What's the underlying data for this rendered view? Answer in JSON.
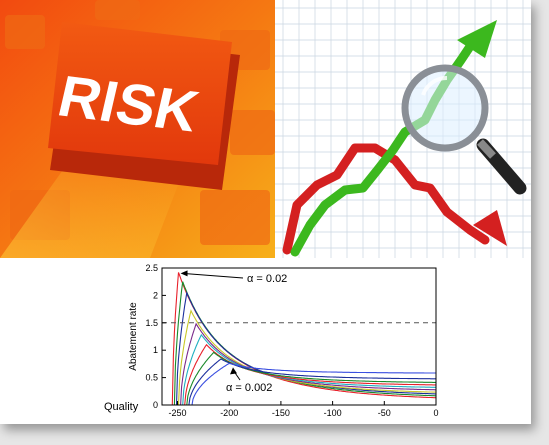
{
  "risk_panel": {
    "key_label": "RISK"
  },
  "chart_data": {
    "type": "line",
    "ylabel": "Abatement rate",
    "xlabel": "Quality",
    "xlim": [
      -265,
      0
    ],
    "ylim": [
      0,
      2.5
    ],
    "xticks": [
      -250,
      -200,
      -150,
      -100,
      -50,
      0
    ],
    "yticks": [
      0,
      0.5,
      1,
      1.5,
      2,
      2.5
    ],
    "reference_line": {
      "y": 1.5,
      "style": "dashed"
    },
    "annotations": [
      {
        "text": "α = 0.02",
        "points_to_series": 0
      },
      {
        "text": "α = 0.002",
        "points_to_series": 9
      }
    ],
    "series": [
      {
        "color": "#e8202a",
        "start": -255,
        "peak_x": -249,
        "peak_y": 2.42,
        "tail_y": 0.08
      },
      {
        "color": "#1a8a2a",
        "start": -253,
        "peak_x": -245,
        "peak_y": 2.25,
        "tail_y": 0.12
      },
      {
        "color": "#1c2f9c",
        "start": -251,
        "peak_x": -241,
        "peak_y": 2.05,
        "tail_y": 0.16
      },
      {
        "color": "#c8c82a",
        "start": -249,
        "peak_x": -237,
        "peak_y": 1.72,
        "tail_y": 0.2
      },
      {
        "color": "#7a2a8a",
        "start": -247,
        "peak_x": -232,
        "peak_y": 1.48,
        "tail_y": 0.25
      },
      {
        "color": "#20b0c0",
        "start": -245,
        "peak_x": -227,
        "peak_y": 1.28,
        "tail_y": 0.3
      },
      {
        "color": "#e8202a",
        "start": -243,
        "peak_x": -222,
        "peak_y": 1.1,
        "tail_y": 0.35
      },
      {
        "color": "#1a8a2a",
        "start": -241,
        "peak_x": -215,
        "peak_y": 0.96,
        "tail_y": 0.4
      },
      {
        "color": "#1c2f9c",
        "start": -239,
        "peak_x": -208,
        "peak_y": 0.84,
        "tail_y": 0.47
      },
      {
        "color": "#3a4fe0",
        "start": -236,
        "peak_x": -200,
        "peak_y": 0.76,
        "tail_y": 0.58
      }
    ]
  }
}
